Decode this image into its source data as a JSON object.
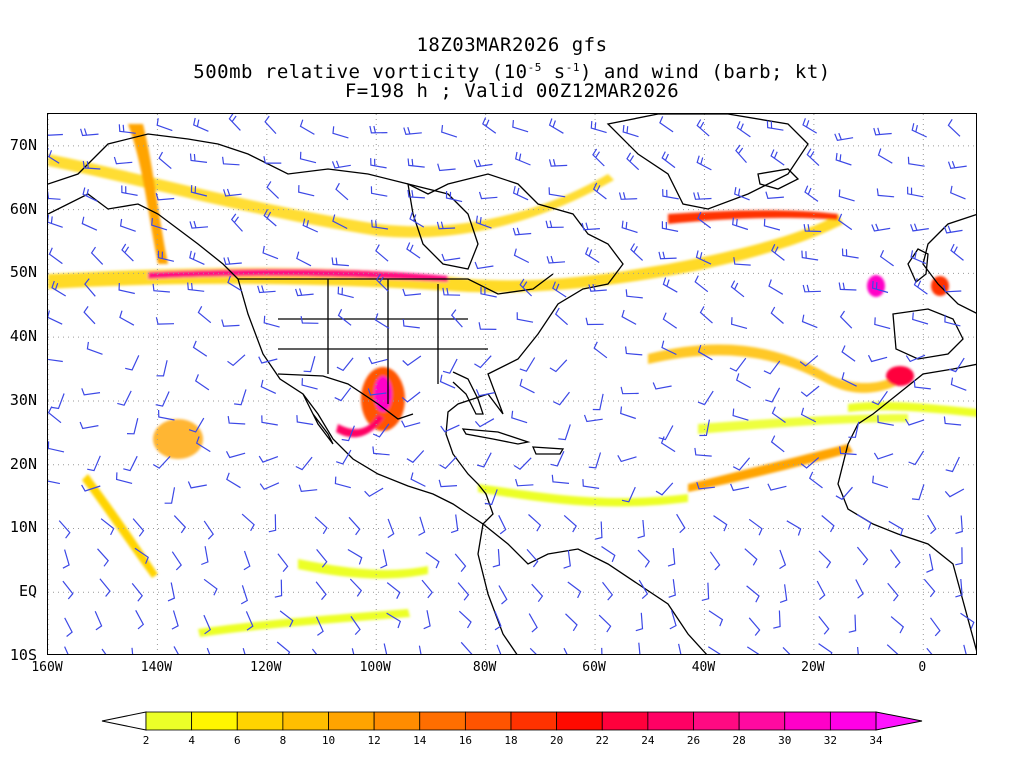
{
  "title": {
    "line1": "18Z03MAR2026 gfs",
    "line2_pre": "500mb relative vorticity (10",
    "line2_exp1": "-5",
    "line2_mid": " s",
    "line2_exp2": "-1",
    "line2_post": ") and wind (barb; kt)",
    "line3": "F=198 h ; Valid 00Z12MAR2026"
  },
  "map": {
    "lat_labels": [
      {
        "text": "70N",
        "lat": 70
      },
      {
        "text": "60N",
        "lat": 60
      },
      {
        "text": "50N",
        "lat": 50
      },
      {
        "text": "40N",
        "lat": 40
      },
      {
        "text": "30N",
        "lat": 30
      },
      {
        "text": "20N",
        "lat": 20
      },
      {
        "text": "10N",
        "lat": 10
      },
      {
        "text": "EQ",
        "lat": 0
      },
      {
        "text": "10S",
        "lat": -10
      }
    ],
    "lon_labels": [
      {
        "text": "160W",
        "lon": -160
      },
      {
        "text": "140W",
        "lon": -140
      },
      {
        "text": "120W",
        "lon": -120
      },
      {
        "text": "100W",
        "lon": -100
      },
      {
        "text": "80W",
        "lon": -80
      },
      {
        "text": "60W",
        "lon": -60
      },
      {
        "text": "40W",
        "lon": -40
      },
      {
        "text": "20W",
        "lon": -20
      },
      {
        "text": "0",
        "lon": 0
      }
    ],
    "lon_range": [
      -160,
      10
    ],
    "lat_range": [
      -10,
      75
    ],
    "grid": "dotted",
    "barb_color": "#3c48e6",
    "coast_color": "#000000"
  },
  "colorbar": {
    "labels": [
      "2",
      "4",
      "6",
      "8",
      "10",
      "12",
      "14",
      "16",
      "18",
      "20",
      "22",
      "24",
      "26",
      "28",
      "30",
      "32",
      "34"
    ],
    "colors": [
      "#ecff28",
      "#fff600",
      "#ffd400",
      "#ffbe00",
      "#ffa400",
      "#ff8c00",
      "#ff6e00",
      "#ff5400",
      "#ff3200",
      "#ff0a00",
      "#ff003c",
      "#ff0064",
      "#ff0a82",
      "#ff0aa0",
      "#ff00c8",
      "#ff00e6"
    ],
    "over_color": "#ff14ff",
    "under_color": "#ffffff"
  }
}
